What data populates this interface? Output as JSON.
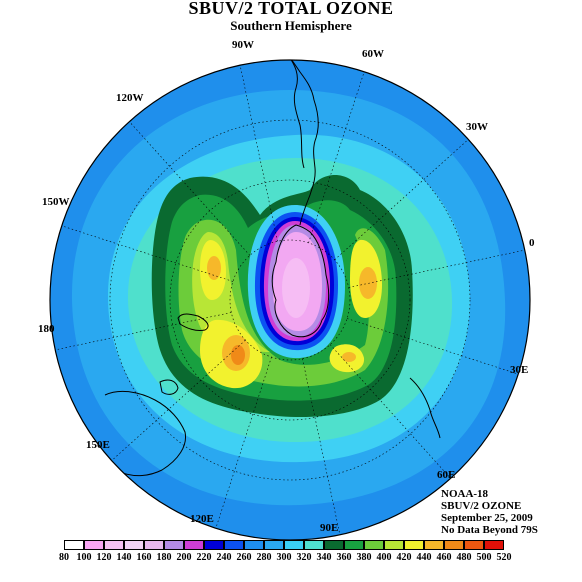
{
  "title": "SBUV/2 TOTAL OZONE",
  "subtitle": "Southern Hemisphere",
  "longitude_labels": [
    "90W",
    "60W",
    "30W",
    "0",
    "30E",
    "60E",
    "90E",
    "120E",
    "150E",
    "180",
    "150W",
    "120W"
  ],
  "info": {
    "line1": "NOAA-18",
    "line2": "SBUV/2 OZONE",
    "line3": "September 25, 2009",
    "line4": "No Data Beyond 79S"
  },
  "legend": {
    "labels": [
      "80",
      "100",
      "120",
      "140",
      "160",
      "180",
      "200",
      "220",
      "240",
      "260",
      "280",
      "300",
      "320",
      "340",
      "360",
      "380",
      "400",
      "420",
      "440",
      "460",
      "480",
      "500",
      "520"
    ],
    "colors": [
      "#ffffff",
      "#f9a6f4",
      "#f6c2f4",
      "#f2d4f6",
      "#e7b8ee",
      "#b48be6",
      "#cf3ed6",
      "#0000d8",
      "#0c52f2",
      "#1e8ff0",
      "#2aa8f0",
      "#3ad0f5",
      "#4fe0d0",
      "#0a6a30",
      "#18a040",
      "#6ccc3a",
      "#b8e636",
      "#f2f22e",
      "#f6b82a",
      "#f08a18",
      "#ee5810",
      "#e01008",
      "#b00000"
    ]
  },
  "colors": {
    "background_ozone": "#2aa0f0",
    "ocean_ring": "#4cc0f4",
    "hole_center": "#f2a8f2"
  }
}
